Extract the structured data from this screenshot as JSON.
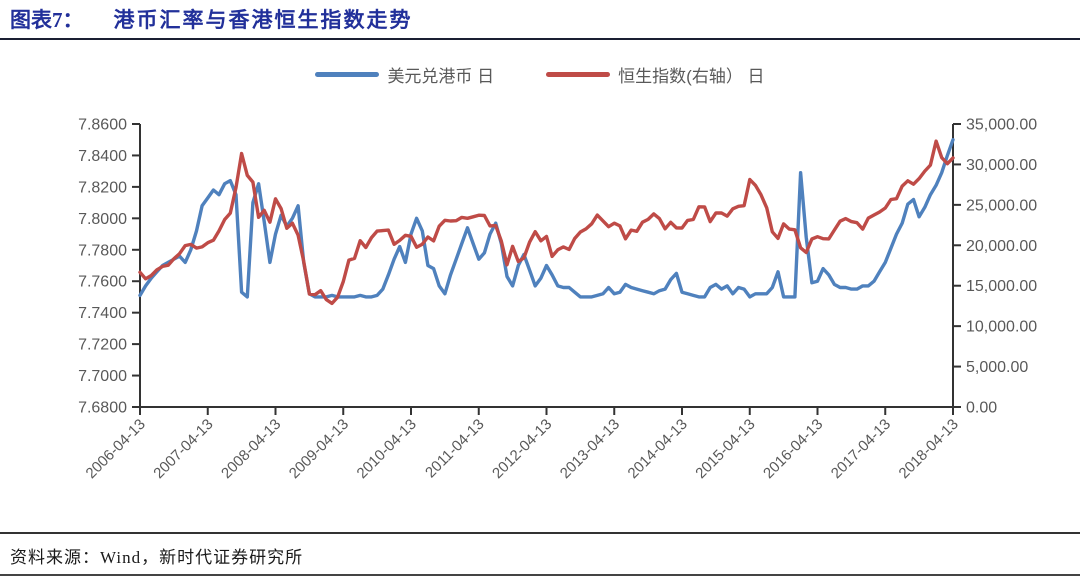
{
  "header": {
    "label": "图表7：",
    "title": "港币汇率与香港恒生指数走势"
  },
  "footer": {
    "source": "资料来源：Wind，新时代证券研究所"
  },
  "colors": {
    "title": "#22309a",
    "axis_line": "#333333",
    "tick_text": "#595959",
    "usdhkd_line": "#4f81bd",
    "hsi_line": "#bf4b47"
  },
  "chart_data": {
    "type": "line",
    "title": "港币汇率与香港恒生指数走势",
    "xlabel": "",
    "ylabel_left": "美元兑港币",
    "ylabel_right": "恒生指数",
    "grid": false,
    "legend_position": "top-center",
    "x_tick_labels": [
      "2006-04-13",
      "2007-04-13",
      "2008-04-13",
      "2009-04-13",
      "2010-04-13",
      "2011-04-13",
      "2012-04-13",
      "2013-04-13",
      "2014-04-13",
      "2015-04-13",
      "2016-04-13",
      "2017-04-13",
      "2018-04-13"
    ],
    "left_axis": {
      "min": 7.68,
      "max": 7.86,
      "tick_labels": [
        "7.8600",
        "7.8400",
        "7.8200",
        "7.8000",
        "7.7800",
        "7.7600",
        "7.7400",
        "7.7200",
        "7.7000",
        "7.6800"
      ]
    },
    "right_axis": {
      "min": 0,
      "max": 35000,
      "tick_labels": [
        "35,000.00",
        "30,000.00",
        "25,000.00",
        "20,000.00",
        "15,000.00",
        "10,000.00",
        "5,000.00",
        "0.00"
      ]
    },
    "x_start": "2006-04",
    "x_end": "2018-04",
    "frequency": "monthly",
    "series": [
      {
        "name": "美元兑港币 日",
        "axis": "left",
        "color": "#4f81bd",
        "values": [
          7.751,
          7.757,
          7.762,
          7.766,
          7.77,
          7.772,
          7.774,
          7.776,
          7.772,
          7.78,
          7.792,
          7.808,
          7.813,
          7.818,
          7.815,
          7.822,
          7.824,
          7.815,
          7.753,
          7.75,
          7.81,
          7.822,
          7.798,
          7.772,
          7.79,
          7.802,
          7.795,
          7.8,
          7.808,
          7.772,
          7.752,
          7.75,
          7.75,
          7.75,
          7.751,
          7.75,
          7.75,
          7.75,
          7.75,
          7.751,
          7.75,
          7.75,
          7.751,
          7.755,
          7.764,
          7.774,
          7.782,
          7.772,
          7.79,
          7.8,
          7.792,
          7.77,
          7.768,
          7.757,
          7.752,
          7.764,
          7.774,
          7.784,
          7.794,
          7.784,
          7.774,
          7.778,
          7.79,
          7.797,
          7.784,
          7.763,
          7.757,
          7.77,
          7.777,
          7.767,
          7.757,
          7.762,
          7.77,
          7.764,
          7.757,
          7.756,
          7.756,
          7.753,
          7.75,
          7.75,
          7.75,
          7.751,
          7.752,
          7.756,
          7.752,
          7.753,
          7.758,
          7.756,
          7.755,
          7.754,
          7.753,
          7.752,
          7.754,
          7.755,
          7.761,
          7.765,
          7.753,
          7.752,
          7.751,
          7.75,
          7.75,
          7.756,
          7.758,
          7.755,
          7.757,
          7.752,
          7.756,
          7.755,
          7.75,
          7.752,
          7.752,
          7.752,
          7.756,
          7.766,
          7.75,
          7.75,
          7.75,
          7.829,
          7.788,
          7.759,
          7.76,
          7.768,
          7.764,
          7.758,
          7.756,
          7.756,
          7.755,
          7.755,
          7.757,
          7.757,
          7.76,
          7.766,
          7.772,
          7.781,
          7.79,
          7.797,
          7.809,
          7.812,
          7.801,
          7.807,
          7.815,
          7.821,
          7.829,
          7.84,
          7.85
        ]
      },
      {
        "name": "恒生指数(右轴） 日",
        "axis": "right",
        "color": "#bf4b47",
        "values": [
          16661,
          15857,
          16267,
          16971,
          17392,
          17543,
          18324,
          18960,
          19965,
          20106,
          19651,
          19800,
          20319,
          20634,
          21773,
          23184,
          23984,
          27142,
          31352,
          28643,
          27813,
          23455,
          24332,
          22849,
          25755,
          24533,
          22102,
          22731,
          21262,
          18016,
          13968,
          13888,
          14387,
          13278,
          12812,
          13576,
          15521,
          18171,
          18379,
          20573,
          19724,
          20955,
          21753,
          21822,
          21873,
          20122,
          20608,
          21239,
          21109,
          19765,
          20129,
          21030,
          20537,
          22358,
          23096,
          23007,
          23035,
          23447,
          23338,
          23528,
          23721,
          23684,
          22398,
          22440,
          20535,
          17592,
          19865,
          17989,
          18434,
          20390,
          21680,
          20556,
          21094,
          18630,
          19441,
          19796,
          19483,
          20840,
          21641,
          22030,
          22657,
          23730,
          23020,
          22300,
          22737,
          22392,
          20803,
          21884,
          21731,
          22860,
          23206,
          23881,
          23306,
          22035,
          22837,
          22151,
          22134,
          23082,
          23191,
          24757,
          24742,
          22933,
          23998,
          23987,
          23605,
          24507,
          24823,
          24901,
          28133,
          27424,
          26250,
          24636,
          21671,
          20846,
          22640,
          21996,
          21914,
          19683,
          19112,
          20777,
          21067,
          20815,
          20794,
          21891,
          22977,
          23297,
          22935,
          22790,
          22001,
          23361,
          23741,
          24112,
          24615,
          25661,
          25765,
          27324,
          27970,
          27554,
          28246,
          29177,
          29919,
          32887,
          30845,
          30093,
          30808
        ]
      }
    ]
  }
}
